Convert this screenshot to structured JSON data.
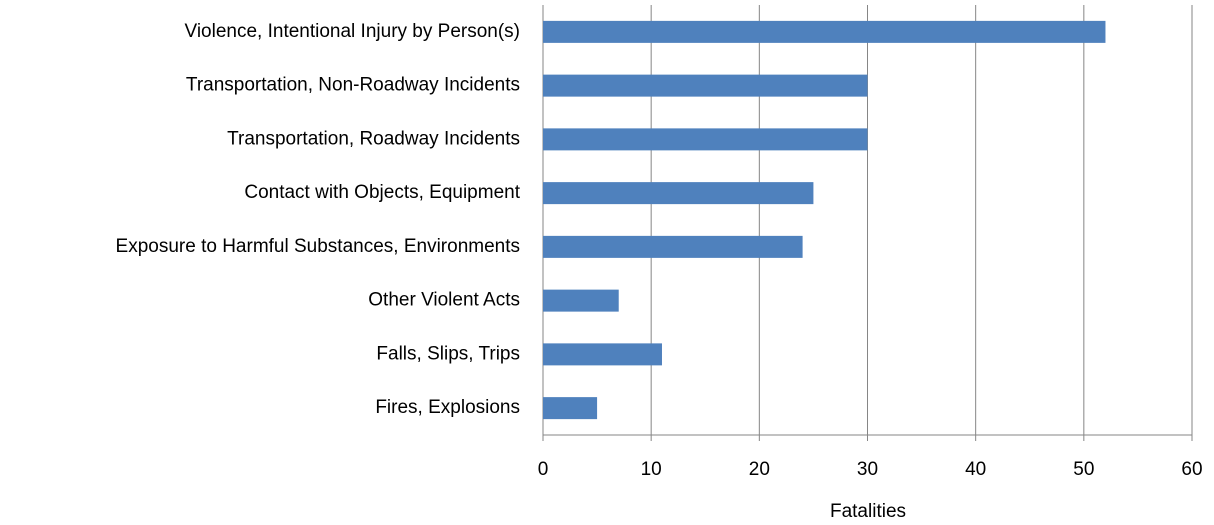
{
  "chart_data": {
    "type": "barh",
    "categories": [
      "Violence, Intentional Injury by Person(s)",
      "Transportation, Non-Roadway Incidents",
      "Transportation, Roadway Incidents ",
      "Contact with Objects, Equipment",
      "Exposure to Harmful Substances, Environments",
      "Other Violent Acts",
      "Falls, Slips, Trips",
      "Fires, Explosions"
    ],
    "values": [
      52,
      30,
      30,
      25,
      24,
      7,
      11,
      5
    ],
    "color": "#4f81bd",
    "xlabel": "Fatalities",
    "xlim": [
      0,
      60
    ],
    "xticks": [
      0,
      10,
      20,
      30,
      40,
      50,
      60
    ],
    "grid": true
  }
}
